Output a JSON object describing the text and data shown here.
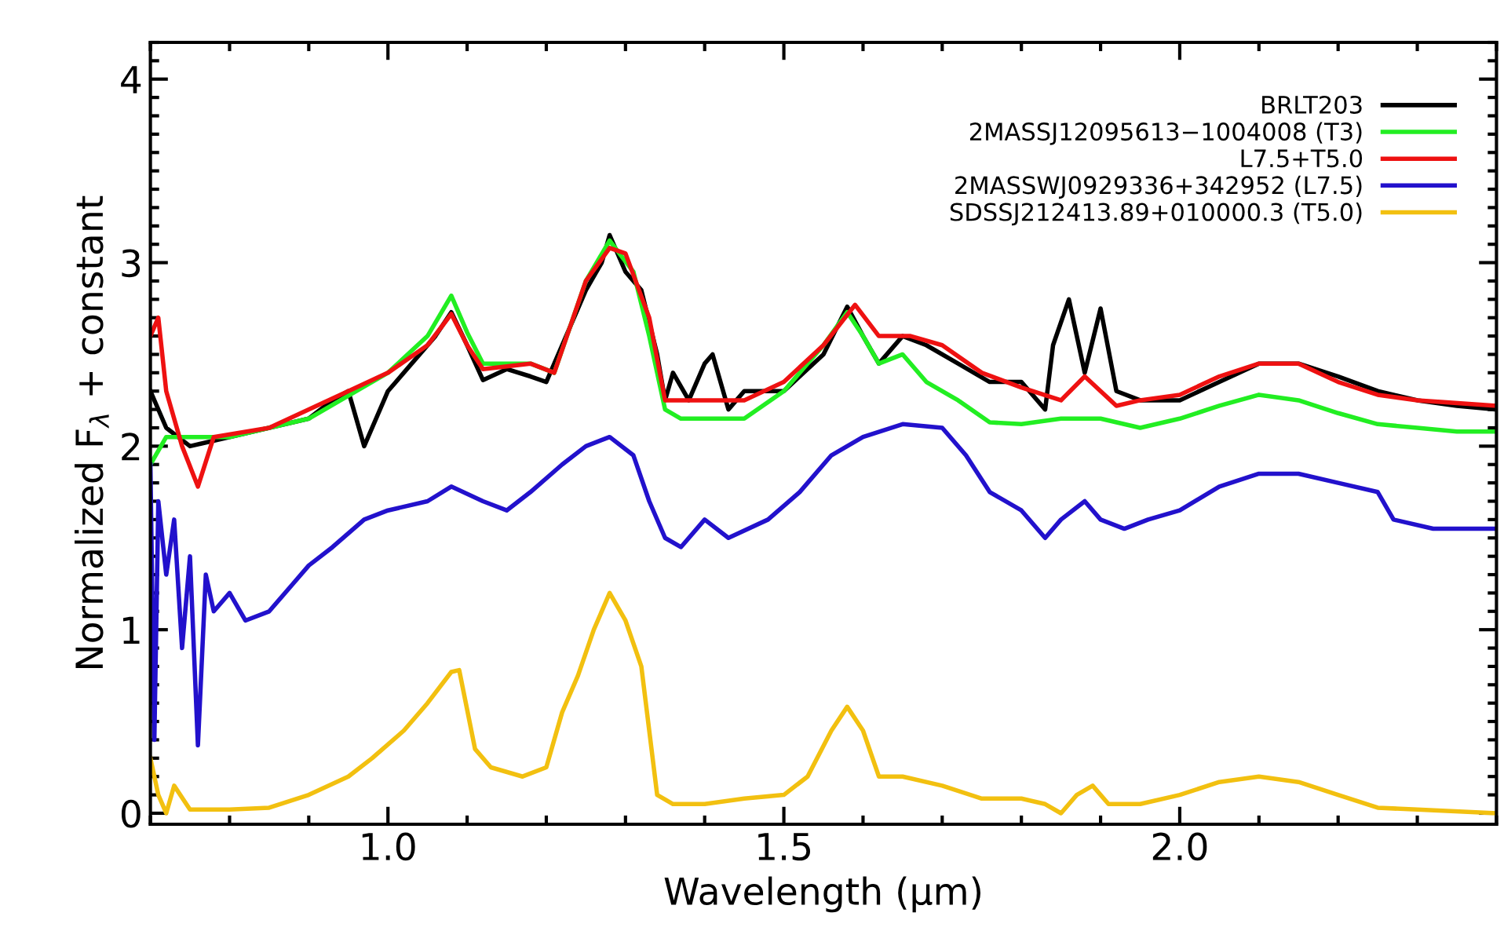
{
  "chart_data": {
    "type": "line",
    "xlabel": "Wavelength (μm)",
    "ylabel": "Normalized F$_{λ}$ + constant",
    "xlim": [
      0.7,
      2.4
    ],
    "ylim": [
      -0.06,
      4.2
    ],
    "xticks": [
      {
        "value": 1.0,
        "label": "1.0"
      },
      {
        "value": 1.5,
        "label": "1.5"
      },
      {
        "value": 2.0,
        "label": "2.0"
      }
    ],
    "yticks": [
      0,
      1,
      2,
      3,
      4
    ],
    "grid": false,
    "legend": "top right",
    "marker": "none",
    "line_style": "solid",
    "series": [
      {
        "name": "BRLT203",
        "color": "#000000",
        "x": [
          0.7,
          0.72,
          0.75,
          0.8,
          0.85,
          0.9,
          0.93,
          0.95,
          0.97,
          1.0,
          1.03,
          1.06,
          1.08,
          1.1,
          1.12,
          1.15,
          1.18,
          1.2,
          1.22,
          1.25,
          1.27,
          1.28,
          1.3,
          1.32,
          1.34,
          1.35,
          1.36,
          1.38,
          1.4,
          1.41,
          1.43,
          1.45,
          1.5,
          1.55,
          1.58,
          1.6,
          1.62,
          1.65,
          1.68,
          1.72,
          1.76,
          1.8,
          1.83,
          1.84,
          1.86,
          1.88,
          1.9,
          1.92,
          1.95,
          2.0,
          2.05,
          2.1,
          2.15,
          2.2,
          2.25,
          2.3,
          2.35,
          2.4
        ],
        "values": [
          2.3,
          2.1,
          2.0,
          2.05,
          2.1,
          2.15,
          2.25,
          2.3,
          2.0,
          2.3,
          2.45,
          2.6,
          2.73,
          2.55,
          2.36,
          2.42,
          2.38,
          2.35,
          2.55,
          2.85,
          3.0,
          3.15,
          2.95,
          2.85,
          2.5,
          2.25,
          2.4,
          2.25,
          2.45,
          2.5,
          2.2,
          2.3,
          2.3,
          2.5,
          2.76,
          2.6,
          2.45,
          2.6,
          2.55,
          2.45,
          2.35,
          2.35,
          2.2,
          2.55,
          2.8,
          2.4,
          2.75,
          2.3,
          2.25,
          2.25,
          2.35,
          2.45,
          2.45,
          2.38,
          2.3,
          2.25,
          2.22,
          2.2
        ]
      },
      {
        "name": "2MASSJ12095613−1004008 (T3)",
        "color": "#22ee22",
        "x": [
          0.7,
          0.72,
          0.8,
          0.9,
          1.0,
          1.05,
          1.08,
          1.1,
          1.12,
          1.18,
          1.21,
          1.25,
          1.28,
          1.31,
          1.33,
          1.35,
          1.37,
          1.45,
          1.5,
          1.55,
          1.58,
          1.6,
          1.62,
          1.65,
          1.68,
          1.72,
          1.76,
          1.8,
          1.85,
          1.9,
          1.95,
          2.0,
          2.05,
          2.1,
          2.15,
          2.2,
          2.25,
          2.3,
          2.35,
          2.4
        ],
        "values": [
          1.9,
          2.05,
          2.05,
          2.15,
          2.4,
          2.6,
          2.82,
          2.62,
          2.45,
          2.45,
          2.4,
          2.9,
          3.12,
          2.95,
          2.6,
          2.2,
          2.15,
          2.15,
          2.3,
          2.55,
          2.73,
          2.6,
          2.45,
          2.5,
          2.35,
          2.25,
          2.13,
          2.12,
          2.15,
          2.15,
          2.1,
          2.15,
          2.22,
          2.28,
          2.25,
          2.18,
          2.12,
          2.1,
          2.08,
          2.08
        ]
      },
      {
        "name": "L7.5+T5.0",
        "color": "#ee1111",
        "x": [
          0.7,
          0.71,
          0.72,
          0.74,
          0.76,
          0.78,
          0.85,
          0.95,
          1.0,
          1.05,
          1.08,
          1.1,
          1.12,
          1.18,
          1.21,
          1.25,
          1.28,
          1.3,
          1.33,
          1.35,
          1.4,
          1.45,
          1.5,
          1.55,
          1.59,
          1.62,
          1.66,
          1.7,
          1.75,
          1.8,
          1.85,
          1.88,
          1.9,
          1.92,
          1.95,
          2.0,
          2.05,
          2.1,
          2.15,
          2.2,
          2.25,
          2.3,
          2.4
        ],
        "values": [
          2.6,
          2.7,
          2.3,
          2.0,
          1.78,
          2.05,
          2.1,
          2.3,
          2.4,
          2.55,
          2.72,
          2.55,
          2.42,
          2.45,
          2.4,
          2.9,
          3.08,
          3.05,
          2.7,
          2.25,
          2.25,
          2.25,
          2.35,
          2.55,
          2.77,
          2.6,
          2.6,
          2.55,
          2.4,
          2.32,
          2.25,
          2.38,
          2.3,
          2.22,
          2.25,
          2.28,
          2.38,
          2.45,
          2.45,
          2.35,
          2.28,
          2.25,
          2.22
        ]
      },
      {
        "name": "2MASSWJ0929336+342952 (L7.5)",
        "color": "#2211cc",
        "x": [
          0.7,
          0.705,
          0.71,
          0.72,
          0.73,
          0.74,
          0.75,
          0.76,
          0.77,
          0.78,
          0.8,
          0.82,
          0.85,
          0.88,
          0.9,
          0.93,
          0.97,
          1.0,
          1.05,
          1.08,
          1.12,
          1.15,
          1.18,
          1.22,
          1.25,
          1.28,
          1.31,
          1.33,
          1.35,
          1.37,
          1.4,
          1.43,
          1.48,
          1.52,
          1.56,
          1.6,
          1.65,
          1.7,
          1.73,
          1.76,
          1.8,
          1.83,
          1.85,
          1.88,
          1.9,
          1.93,
          1.96,
          2.0,
          2.05,
          2.1,
          2.15,
          2.2,
          2.25,
          2.27,
          2.32,
          2.4
        ],
        "values": [
          1.9,
          0.4,
          1.7,
          1.3,
          1.6,
          0.9,
          1.4,
          0.37,
          1.3,
          1.1,
          1.2,
          1.05,
          1.1,
          1.25,
          1.35,
          1.45,
          1.6,
          1.65,
          1.7,
          1.78,
          1.7,
          1.65,
          1.75,
          1.9,
          2.0,
          2.05,
          1.95,
          1.7,
          1.5,
          1.45,
          1.6,
          1.5,
          1.6,
          1.75,
          1.95,
          2.05,
          2.12,
          2.1,
          1.95,
          1.75,
          1.65,
          1.5,
          1.6,
          1.7,
          1.6,
          1.55,
          1.6,
          1.65,
          1.78,
          1.85,
          1.85,
          1.8,
          1.75,
          1.6,
          1.55,
          1.55
        ]
      },
      {
        "name": "SDSSJ212413.89+010000.3 (T5.0)",
        "color": "#f2c010",
        "x": [
          0.7,
          0.71,
          0.72,
          0.73,
          0.75,
          0.8,
          0.85,
          0.9,
          0.95,
          0.98,
          1.02,
          1.05,
          1.08,
          1.09,
          1.11,
          1.13,
          1.17,
          1.2,
          1.22,
          1.24,
          1.26,
          1.28,
          1.3,
          1.32,
          1.34,
          1.36,
          1.4,
          1.45,
          1.5,
          1.53,
          1.56,
          1.58,
          1.6,
          1.62,
          1.65,
          1.7,
          1.75,
          1.8,
          1.83,
          1.85,
          1.87,
          1.89,
          1.91,
          1.95,
          2.0,
          2.05,
          2.1,
          2.15,
          2.2,
          2.25,
          2.3,
          2.4
        ],
        "values": [
          0.3,
          0.1,
          0.0,
          0.15,
          0.02,
          0.02,
          0.03,
          0.1,
          0.2,
          0.3,
          0.45,
          0.6,
          0.77,
          0.78,
          0.35,
          0.25,
          0.2,
          0.25,
          0.55,
          0.75,
          1.0,
          1.2,
          1.05,
          0.8,
          0.1,
          0.05,
          0.05,
          0.08,
          0.1,
          0.2,
          0.45,
          0.58,
          0.45,
          0.2,
          0.2,
          0.15,
          0.08,
          0.08,
          0.05,
          0.0,
          0.1,
          0.15,
          0.05,
          0.05,
          0.1,
          0.17,
          0.2,
          0.17,
          0.1,
          0.03,
          0.02,
          0.0
        ]
      }
    ]
  }
}
